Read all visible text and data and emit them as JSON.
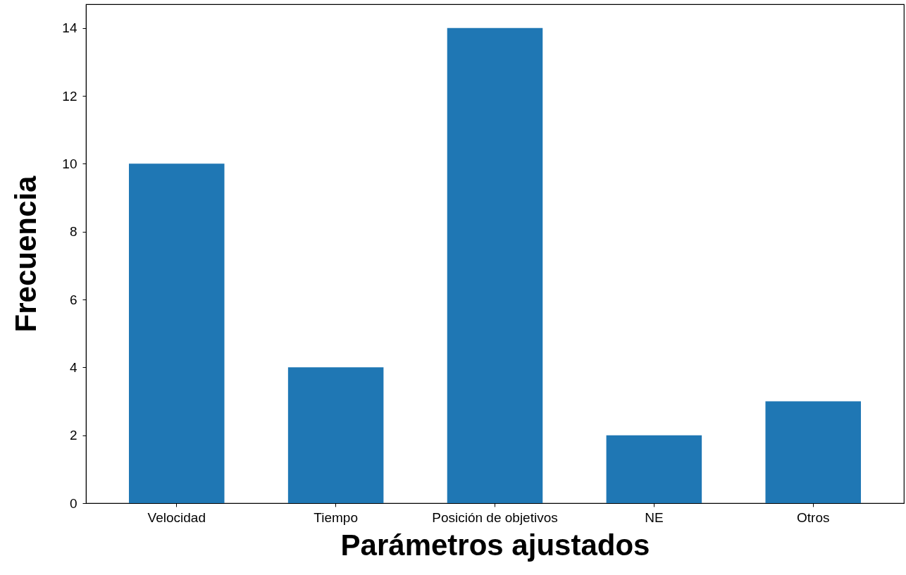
{
  "chart_data": {
    "type": "bar",
    "xlabel": "Parámetros ajustados",
    "ylabel": "Frecuencia",
    "categories": [
      "Velocidad",
      "Tiempo",
      "Posición de objetivos",
      "NE",
      "Otros"
    ],
    "values": [
      10,
      4,
      14,
      2,
      3
    ],
    "color": "#1f77b4",
    "ylim": [
      0,
      14.7
    ],
    "yticks": [
      0,
      2,
      4,
      6,
      8,
      10,
      12,
      14
    ],
    "grid": false
  }
}
